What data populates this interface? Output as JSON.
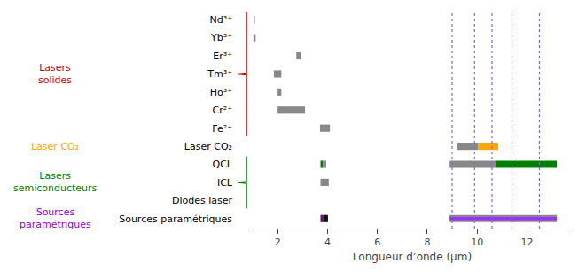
{
  "chart_data": {
    "type": "bar",
    "orientation": "horizontal",
    "xlabel": "Longueur d’onde (µm)",
    "xlim": [
      1,
      13.8
    ],
    "xticks": [
      2,
      4,
      6,
      8,
      10,
      12
    ],
    "grid": false,
    "categories": [
      "Nd³⁺",
      "Yb³⁺",
      "Er³⁺",
      "Tm³⁺",
      "Ho³⁺",
      "Cr²⁺",
      "Fe²⁺",
      "Laser CO₂",
      "QCL",
      "ICL",
      "Diodes laser",
      "Sources paramétriques"
    ],
    "ranges": [
      [
        {
          "start": 1.06,
          "end": 1.09,
          "color": "#888888"
        }
      ],
      [
        {
          "start": 1.03,
          "end": 1.12,
          "color": "#888888"
        }
      ],
      [
        {
          "start": 2.75,
          "end": 2.95,
          "color": "#888888"
        }
      ],
      [
        {
          "start": 1.85,
          "end": 2.15,
          "color": "#888888"
        }
      ],
      [
        {
          "start": 2.0,
          "end": 2.15,
          "color": "#888888"
        }
      ],
      [
        {
          "start": 2.0,
          "end": 3.1,
          "color": "#888888"
        }
      ],
      [
        {
          "start": 3.7,
          "end": 4.1,
          "color": "#888888"
        }
      ],
      [
        {
          "start": 9.2,
          "end": 10.05,
          "color": "#888888"
        },
        {
          "start": 10.05,
          "end": 10.85,
          "color": "#FFA500"
        }
      ],
      [
        {
          "start": 3.72,
          "end": 3.82,
          "color": "#008000"
        },
        {
          "start": 3.82,
          "end": 3.95,
          "color": "#888888"
        },
        {
          "start": 8.9,
          "end": 10.75,
          "color": "#888888"
        },
        {
          "start": 10.75,
          "end": 13.2,
          "color": "#008000"
        }
      ],
      [
        {
          "start": 3.72,
          "end": 4.05,
          "color": "#888888"
        }
      ],
      [],
      [
        {
          "start": 3.72,
          "end": 3.82,
          "color": "#800080"
        },
        {
          "start": 3.82,
          "end": 4.02,
          "color": "#111111"
        },
        {
          "start": 8.9,
          "end": 13.2,
          "color": "#888888"
        },
        {
          "start": 8.9,
          "end": 13.2,
          "color": "#9B30FF"
        }
      ]
    ],
    "groups": [
      {
        "text": "Lasers\nsolides",
        "color": "#CC0000",
        "first": "Nd³⁺",
        "last": "Fe²⁺",
        "bracket": true
      },
      {
        "text": "Laser CO₂",
        "color": "#FFA500",
        "first": "Laser CO₂",
        "last": "Laser CO₂",
        "bracket": false
      },
      {
        "text": "Lasers\nsemiconducteurs",
        "color": "#008000",
        "first": "QCL",
        "last": "Diodes laser",
        "bracket": true
      },
      {
        "text": "Sources\nparamétriques",
        "color": "#9400D3",
        "first": "Sources paramétriques",
        "last": "Sources paramétriques",
        "bracket": false
      }
    ],
    "vlines": {
      "values": [
        9.0,
        9.9,
        10.6,
        11.4,
        12.5
      ],
      "color": "#7B68EE"
    }
  }
}
